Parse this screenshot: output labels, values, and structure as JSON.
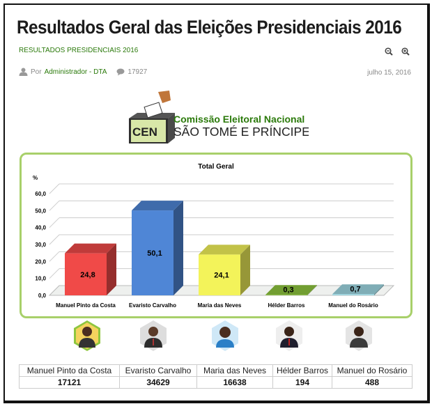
{
  "article": {
    "title": "Resultados Geral das Eleições Presidenciais 2016",
    "category": "RESULTADOS PRESIDENCIAIS 2016",
    "by_prefix": "Por",
    "author": "Administrador - DTA",
    "comments": "17927",
    "date": "julho 15, 2016"
  },
  "logo": {
    "abbr": "CEN",
    "line1": "Comissão Eleitoral Nacional",
    "line2": "SÃO TOMÉ E PRÍNCIPE"
  },
  "colors": {
    "accent": "#2b7a0b",
    "chart_border": "#a8d06a"
  },
  "icons": [
    "zoom-out-icon",
    "zoom-in-icon",
    "user-icon",
    "comment-icon",
    "ballot-box-icon"
  ],
  "chart_data": {
    "type": "bar",
    "title": "Total Geral",
    "ylabel": "%",
    "ylim": [
      0,
      60
    ],
    "yticks": [
      "0,0",
      "10,0",
      "20,0",
      "30,0",
      "40,0",
      "50,0",
      "60,0"
    ],
    "grid": true,
    "categories": [
      "Manuel Pinto da Costa",
      "Evaristo Carvalho",
      "Maria das Neves",
      "Hélder Barros",
      "Manuel do Rosário"
    ],
    "values": [
      24.8,
      50.1,
      24.1,
      0.3,
      0.7
    ],
    "value_labels": [
      "24,8",
      "50,1",
      "24,1",
      "0,3",
      "0,7"
    ],
    "colors": [
      "#f04a48",
      "#4f86d6",
      "#f3f35a",
      "#8ec63f",
      "#9fd8e3"
    ]
  },
  "results_table": {
    "names": [
      "Manuel Pinto da Costa",
      "Evaristo Carvalho",
      "Maria das Neves",
      "Hélder Barros",
      "Manuel do Rosário"
    ],
    "votes": [
      "17121",
      "34629",
      "16638",
      "194",
      "488"
    ]
  }
}
